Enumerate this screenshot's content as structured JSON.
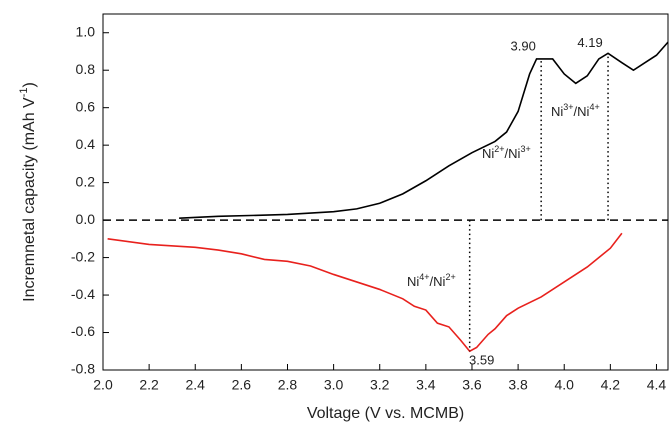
{
  "chart_data": {
    "type": "line",
    "x_label": "Voltage (V vs. MCMB)",
    "y_label": {
      "text": "Incremnetal capacity (mAh V",
      "sup": "-1",
      "end": ")"
    },
    "xlim": [
      2.0,
      4.45
    ],
    "ylim": [
      -0.8,
      1.1
    ],
    "xticks": [
      {
        "value": 2,
        "label": "2.0"
      },
      2.2,
      2.4,
      2.6,
      2.8,
      {
        "value": 3,
        "label": "3.0"
      },
      3.2,
      3.4,
      3.6,
      3.8,
      {
        "value": 4,
        "label": "4.0"
      },
      4.2,
      4.4
    ],
    "yticks": [
      -0.8,
      -0.6,
      -0.4,
      -0.2,
      {
        "value": 0,
        "label": "0.0"
      },
      0.2,
      0.4,
      0.6,
      0.8,
      {
        "value": 1,
        "label": "1.0"
      }
    ],
    "series": [
      {
        "color": "#000000",
        "x": [
          2.33,
          2.5,
          2.8,
          3.0,
          3.1,
          3.2,
          3.3,
          3.4,
          3.5,
          3.6,
          3.7,
          3.75,
          3.8,
          3.85,
          3.88,
          3.95,
          4.0,
          4.05,
          4.1,
          4.15,
          4.19,
          4.25,
          4.3,
          4.35,
          4.4,
          4.45
        ],
        "values": [
          0.01,
          0.02,
          0.03,
          0.045,
          0.06,
          0.09,
          0.14,
          0.21,
          0.29,
          0.36,
          0.42,
          0.47,
          0.58,
          0.78,
          0.86,
          0.86,
          0.78,
          0.73,
          0.77,
          0.86,
          0.89,
          0.84,
          0.8,
          0.84,
          0.88,
          0.95
        ]
      },
      {
        "color": "#e8211d",
        "x": [
          2.02,
          2.2,
          2.4,
          2.5,
          2.6,
          2.7,
          2.8,
          2.9,
          3.0,
          3.1,
          3.2,
          3.3,
          3.35,
          3.4,
          3.45,
          3.5,
          3.55,
          3.59,
          3.62,
          3.67,
          3.7,
          3.75,
          3.8,
          3.9,
          4.0,
          4.1,
          4.2,
          4.25
        ],
        "values": [
          -0.1,
          -0.13,
          -0.145,
          -0.16,
          -0.18,
          -0.21,
          -0.22,
          -0.245,
          -0.29,
          -0.33,
          -0.37,
          -0.42,
          -0.46,
          -0.48,
          -0.55,
          -0.57,
          -0.64,
          -0.7,
          -0.68,
          -0.61,
          -0.58,
          -0.51,
          -0.47,
          -0.41,
          -0.33,
          -0.25,
          -0.15,
          -0.07
        ]
      }
    ],
    "peaks": [
      {
        "label": "3.90",
        "x": 3.9,
        "y": 0.86
      },
      {
        "label": "4.19",
        "x": 4.19,
        "y": 0.89
      },
      {
        "label": "3.59",
        "x": 3.59,
        "y": -0.7
      }
    ],
    "annotations": [
      [
        "Ni",
        "2+",
        "/Ni",
        "3+"
      ],
      [
        "Ni",
        "3+",
        "/Ni",
        "4+"
      ],
      [
        "Ni",
        "4+",
        "/Ni",
        "2+"
      ]
    ]
  }
}
